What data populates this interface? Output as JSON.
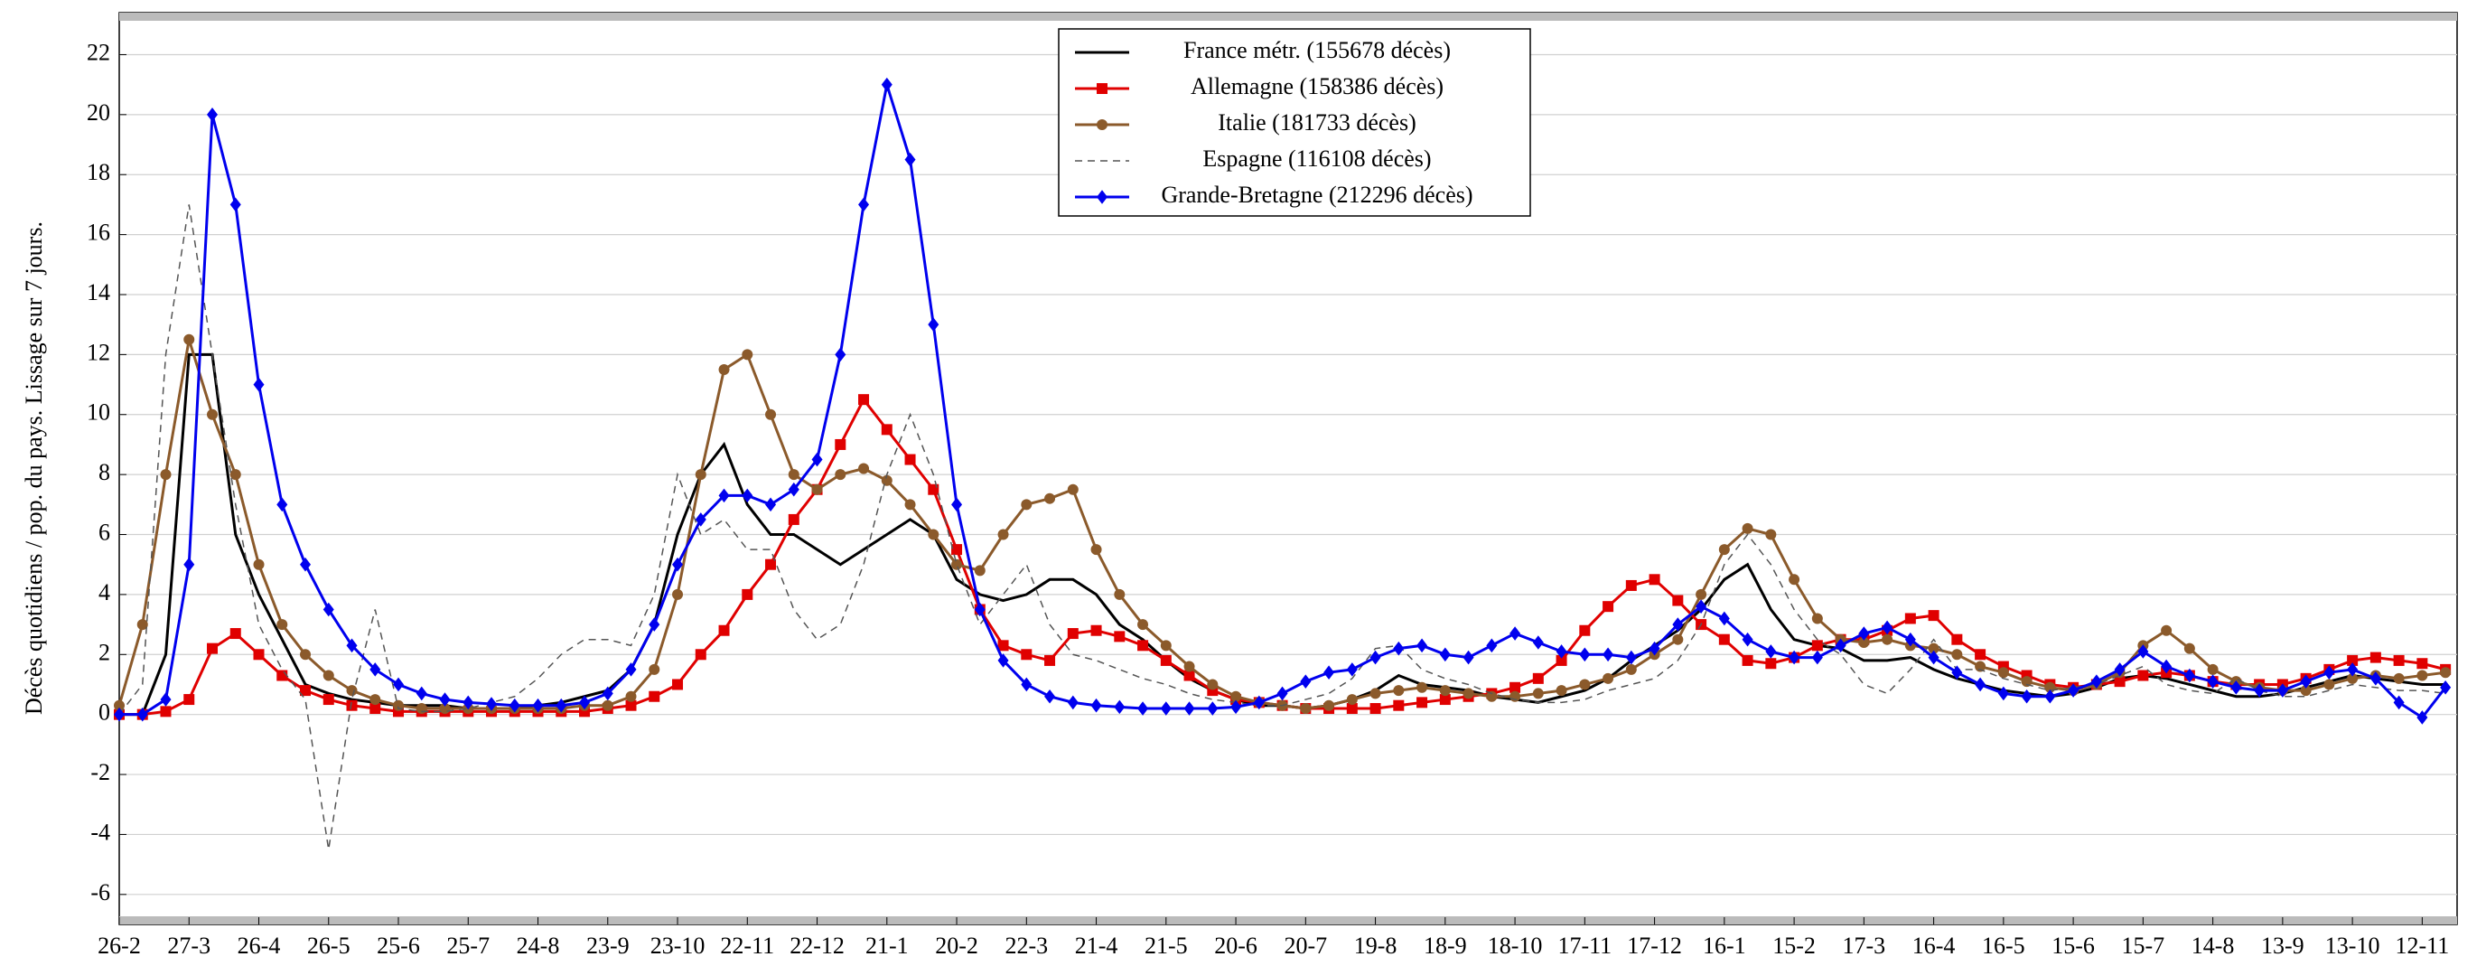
{
  "chart_data": {
    "type": "line",
    "ylabel": "Décès quotidiens / pop. du pays. Lissage sur 7 jours.",
    "legend": "top-center",
    "grid": true,
    "xlim": [
      0,
      1005
    ],
    "ylim": [
      -7,
      23.4
    ],
    "yticks": [
      -6,
      -4,
      -2,
      0,
      2,
      4,
      6,
      8,
      10,
      12,
      14,
      16,
      18,
      20,
      22
    ],
    "xticks": [
      {
        "value": 0,
        "label": "26-2"
      },
      {
        "value": 30,
        "label": "27-3"
      },
      {
        "value": 60,
        "label": "26-4"
      },
      {
        "value": 90,
        "label": "26-5"
      },
      {
        "value": 120,
        "label": "25-6"
      },
      {
        "value": 150,
        "label": "25-7"
      },
      {
        "value": 180,
        "label": "24-8"
      },
      {
        "value": 210,
        "label": "23-9"
      },
      {
        "value": 240,
        "label": "23-10"
      },
      {
        "value": 270,
        "label": "22-11"
      },
      {
        "value": 300,
        "label": "22-12"
      },
      {
        "value": 330,
        "label": "21-1"
      },
      {
        "value": 360,
        "label": "20-2"
      },
      {
        "value": 390,
        "label": "22-3"
      },
      {
        "value": 420,
        "label": "21-4"
      },
      {
        "value": 450,
        "label": "21-5"
      },
      {
        "value": 480,
        "label": "20-6"
      },
      {
        "value": 510,
        "label": "20-7"
      },
      {
        "value": 540,
        "label": "19-8"
      },
      {
        "value": 570,
        "label": "18-9"
      },
      {
        "value": 600,
        "label": "18-10"
      },
      {
        "value": 630,
        "label": "17-11"
      },
      {
        "value": 660,
        "label": "17-12"
      },
      {
        "value": 690,
        "label": "16-1"
      },
      {
        "value": 720,
        "label": "15-2"
      },
      {
        "value": 750,
        "label": "17-3"
      },
      {
        "value": 780,
        "label": "16-4"
      },
      {
        "value": 810,
        "label": "16-5"
      },
      {
        "value": 840,
        "label": "15-6"
      },
      {
        "value": 870,
        "label": "15-7"
      },
      {
        "value": 900,
        "label": "14-8"
      },
      {
        "value": 930,
        "label": "13-9"
      },
      {
        "value": 960,
        "label": "13-10"
      },
      {
        "value": 990,
        "label": "12-11"
      }
    ],
    "x": [
      0,
      10,
      20,
      30,
      40,
      50,
      60,
      70,
      80,
      90,
      100,
      110,
      120,
      130,
      140,
      150,
      160,
      170,
      180,
      190,
      200,
      210,
      220,
      230,
      240,
      250,
      260,
      270,
      280,
      290,
      300,
      310,
      320,
      330,
      340,
      350,
      360,
      370,
      380,
      390,
      400,
      410,
      420,
      430,
      440,
      450,
      460,
      470,
      480,
      490,
      500,
      510,
      520,
      530,
      540,
      550,
      560,
      570,
      580,
      590,
      600,
      610,
      620,
      630,
      640,
      650,
      660,
      670,
      680,
      690,
      700,
      710,
      720,
      730,
      740,
      750,
      760,
      770,
      780,
      790,
      800,
      810,
      820,
      830,
      840,
      850,
      860,
      870,
      880,
      890,
      900,
      910,
      920,
      930,
      940,
      950,
      960,
      970,
      980,
      990,
      1000
    ],
    "series": [
      {
        "name": "France métr. (155678 décès)",
        "color": "#000000",
        "marker": "none",
        "line_style": "solid",
        "values": [
          0,
          0,
          2,
          12,
          12,
          6,
          4,
          2.5,
          1,
          0.7,
          0.5,
          0.4,
          0.3,
          0.3,
          0.3,
          0.2,
          0.2,
          0.2,
          0.3,
          0.4,
          0.6,
          0.8,
          1.5,
          3,
          6,
          8,
          9,
          7,
          6,
          6,
          5.5,
          5,
          5.5,
          6,
          6.5,
          6,
          4.5,
          4,
          3.8,
          4,
          4.5,
          4.5,
          4,
          3,
          2.5,
          1.8,
          1.2,
          0.8,
          0.5,
          0.3,
          0.3,
          0.2,
          0.3,
          0.5,
          0.8,
          1.3,
          1,
          0.9,
          0.8,
          0.6,
          0.5,
          0.4,
          0.6,
          0.8,
          1.2,
          1.8,
          2.3,
          2.8,
          3.5,
          4.5,
          5,
          3.5,
          2.5,
          2.3,
          2.2,
          1.8,
          1.8,
          1.9,
          1.5,
          1.2,
          1,
          0.8,
          0.7,
          0.6,
          0.7,
          0.9,
          1.2,
          1.3,
          1.2,
          1,
          0.8,
          0.6,
          0.6,
          0.7,
          0.9,
          1.1,
          1.3,
          1.2,
          1.1,
          1,
          1
        ]
      },
      {
        "name": "Allemagne (158386 décès)",
        "color": "#e00000",
        "marker": "square",
        "line_style": "solid",
        "values": [
          0,
          0,
          0.1,
          0.5,
          2.2,
          2.7,
          2,
          1.3,
          0.8,
          0.5,
          0.3,
          0.2,
          0.1,
          0.1,
          0.1,
          0.1,
          0.1,
          0.1,
          0.1,
          0.1,
          0.1,
          0.2,
          0.3,
          0.6,
          1,
          2,
          2.8,
          4,
          5,
          6.5,
          7.5,
          9,
          10.5,
          9.5,
          8.5,
          7.5,
          5.5,
          3.5,
          2.3,
          2,
          1.8,
          2.7,
          2.8,
          2.6,
          2.3,
          1.8,
          1.3,
          0.8,
          0.5,
          0.4,
          0.3,
          0.2,
          0.2,
          0.2,
          0.2,
          0.3,
          0.4,
          0.5,
          0.6,
          0.7,
          0.9,
          1.2,
          1.8,
          2.8,
          3.6,
          4.3,
          4.5,
          3.8,
          3,
          2.5,
          1.8,
          1.7,
          1.9,
          2.3,
          2.5,
          2.5,
          2.8,
          3.2,
          3.3,
          2.5,
          2,
          1.6,
          1.3,
          1,
          0.9,
          1,
          1.1,
          1.3,
          1.4,
          1.3,
          1.1,
          1,
          1,
          1,
          1.2,
          1.5,
          1.8,
          1.9,
          1.8,
          1.7,
          1.5
        ]
      },
      {
        "name": "Italie (181733 décès)",
        "color": "#8b5a2b",
        "marker": "circle",
        "line_style": "solid",
        "values": [
          0.3,
          3,
          8,
          12.5,
          10,
          8,
          5,
          3,
          2,
          1.3,
          0.8,
          0.5,
          0.3,
          0.2,
          0.2,
          0.2,
          0.2,
          0.2,
          0.2,
          0.2,
          0.3,
          0.3,
          0.6,
          1.5,
          4,
          8,
          11.5,
          12,
          10,
          8,
          7.5,
          8,
          8.2,
          7.8,
          7,
          6,
          5,
          4.8,
          6,
          7,
          7.2,
          7.5,
          5.5,
          4,
          3,
          2.3,
          1.6,
          1,
          0.6,
          0.4,
          0.3,
          0.2,
          0.3,
          0.5,
          0.7,
          0.8,
          0.9,
          0.8,
          0.7,
          0.6,
          0.6,
          0.7,
          0.8,
          1,
          1.2,
          1.5,
          2,
          2.5,
          4,
          5.5,
          6.2,
          6,
          4.5,
          3.2,
          2.5,
          2.4,
          2.5,
          2.3,
          2.2,
          2,
          1.6,
          1.4,
          1.1,
          0.9,
          0.8,
          1,
          1.4,
          2.3,
          2.8,
          2.2,
          1.5,
          1.1,
          0.9,
          0.8,
          0.8,
          1,
          1.2,
          1.3,
          1.2,
          1.3,
          1.4
        ]
      },
      {
        "name": "Espagne (116108 décès)",
        "color": "#555555",
        "marker": "none",
        "line_style": "dashed",
        "values": [
          0,
          1,
          12,
          17,
          12,
          7,
          3,
          1.5,
          0.5,
          -4.5,
          0.5,
          3.5,
          0.2,
          0.1,
          0.1,
          0.2,
          0.4,
          0.6,
          1.2,
          2,
          2.5,
          2.5,
          2.3,
          4,
          8,
          6,
          6.5,
          5.5,
          5.5,
          3.5,
          2.5,
          3,
          5,
          8,
          10,
          8,
          5,
          3,
          4,
          5,
          3,
          2,
          1.8,
          1.5,
          1.2,
          1,
          0.7,
          0.5,
          0.4,
          0.3,
          0.3,
          0.5,
          0.7,
          1.2,
          2.2,
          2.3,
          1.5,
          1.2,
          1,
          0.7,
          0.5,
          0.4,
          0.4,
          0.5,
          0.8,
          1,
          1.2,
          1.8,
          3,
          5,
          6,
          5,
          3.5,
          2.5,
          2,
          1,
          0.7,
          1.5,
          2.5,
          1.5,
          1.5,
          1.2,
          1,
          0.8,
          0.9,
          1,
          1.3,
          1.6,
          1,
          0.8,
          0.7,
          1.2,
          0.8,
          0.6,
          0.6,
          0.8,
          1,
          0.9,
          0.8,
          0.8,
          0.7
        ]
      },
      {
        "name": "Grande-Bretagne (212296 décès)",
        "color": "#0000ee",
        "marker": "diamond",
        "line_style": "solid",
        "values": [
          0,
          0,
          0.5,
          5,
          20,
          17,
          11,
          7,
          5,
          3.5,
          2.3,
          1.5,
          1,
          0.7,
          0.5,
          0.4,
          0.35,
          0.3,
          0.3,
          0.3,
          0.4,
          0.7,
          1.5,
          3,
          5,
          6.5,
          7.3,
          7.3,
          7,
          7.5,
          8.5,
          12,
          17,
          21,
          18.5,
          13,
          7,
          3.5,
          1.8,
          1,
          0.6,
          0.4,
          0.3,
          0.25,
          0.2,
          0.2,
          0.2,
          0.2,
          0.25,
          0.4,
          0.7,
          1.1,
          1.4,
          1.5,
          1.9,
          2.2,
          2.3,
          2,
          1.9,
          2.3,
          2.7,
          2.4,
          2.1,
          2,
          2,
          1.9,
          2.2,
          3,
          3.6,
          3.2,
          2.5,
          2.1,
          1.9,
          1.9,
          2.3,
          2.7,
          2.9,
          2.5,
          1.9,
          1.4,
          1,
          0.7,
          0.6,
          0.6,
          0.8,
          1.1,
          1.5,
          2.1,
          1.6,
          1.3,
          1.1,
          0.9,
          0.8,
          0.8,
          1.1,
          1.4,
          1.5,
          1.2,
          0.4,
          -0.1,
          0.9
        ]
      }
    ]
  }
}
